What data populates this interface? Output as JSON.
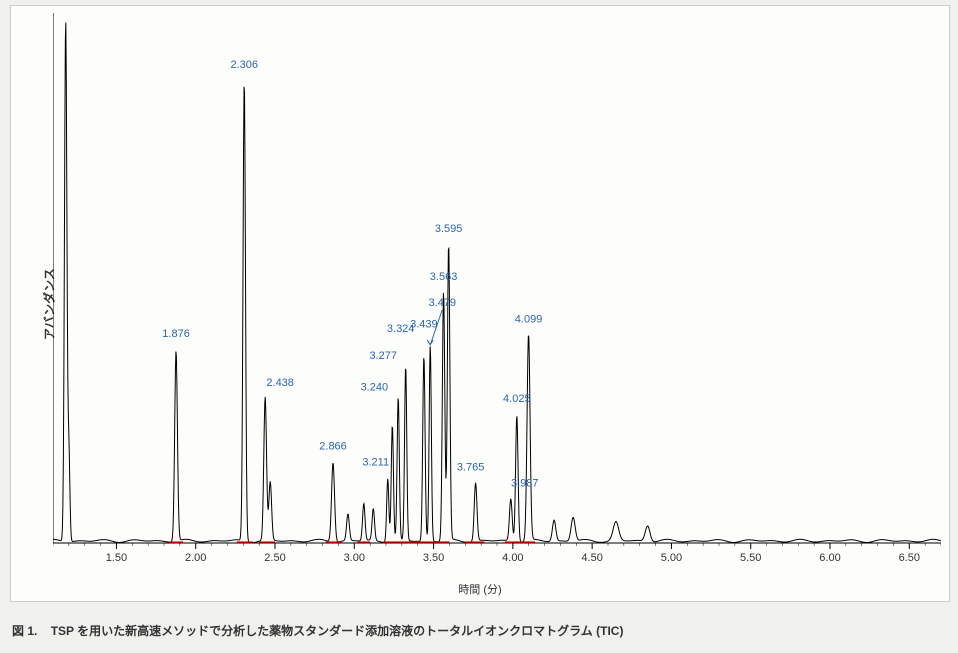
{
  "figure": {
    "caption_prefix": "図 1.",
    "caption_text": "TSP を用いた新高速メソッドで分析した薬物スタンダード添加溶液のトータルイオンクロマトグラム (TIC)",
    "y_axis_label": "アバンダンス",
    "x_axis_label": "時間 (分)"
  },
  "chart": {
    "type": "chromatogram",
    "x_min": 1.1,
    "x_max": 6.7,
    "y_min": 0.0,
    "y_max": 1.0,
    "x_ticks": [
      1.5,
      2.0,
      2.5,
      3.0,
      3.5,
      4.0,
      4.5,
      5.0,
      5.5,
      6.0,
      6.5
    ],
    "x_tick_labels": [
      "1.50",
      "2.00",
      "2.50",
      "3.00",
      "3.50",
      "4.00",
      "4.50",
      "5.00",
      "5.50",
      "6.00",
      "6.50"
    ],
    "x_minor_step": 0.1,
    "baseline_color": "#000000",
    "peak_line_color": "#000000",
    "peak_line_width": 1.0,
    "label_color": "#2a66b1",
    "label_fontsize": 11,
    "integration_segment_color": "#ff0000",
    "integration_segment_width": 1.2,
    "background_color": "#fdfdfc",
    "peaks": [
      {
        "rt": 1.18,
        "height": 0.985,
        "width": 0.018,
        "label": null
      },
      {
        "rt": 1.2,
        "height": 0.17,
        "width": 0.015,
        "label": null
      },
      {
        "rt": 1.876,
        "height": 0.36,
        "width": 0.02,
        "label": "1.876"
      },
      {
        "rt": 2.306,
        "height": 0.87,
        "width": 0.018,
        "label": "2.306"
      },
      {
        "rt": 2.438,
        "height": 0.27,
        "width": 0.02,
        "label": "2.438"
      },
      {
        "rt": 2.47,
        "height": 0.11,
        "width": 0.02,
        "label": null
      },
      {
        "rt": 2.866,
        "height": 0.15,
        "width": 0.022,
        "label": "2.866"
      },
      {
        "rt": 2.96,
        "height": 0.05,
        "width": 0.02,
        "label": null
      },
      {
        "rt": 3.06,
        "height": 0.07,
        "width": 0.018,
        "label": null
      },
      {
        "rt": 3.12,
        "height": 0.06,
        "width": 0.018,
        "label": null
      },
      {
        "rt": 3.211,
        "height": 0.12,
        "width": 0.016,
        "label": "3.211"
      },
      {
        "rt": 3.24,
        "height": 0.22,
        "width": 0.016,
        "label": "3.240"
      },
      {
        "rt": 3.277,
        "height": 0.27,
        "width": 0.016,
        "label": "3.277"
      },
      {
        "rt": 3.324,
        "height": 0.33,
        "width": 0.016,
        "label": "3.324"
      },
      {
        "rt": 3.439,
        "height": 0.35,
        "width": 0.017,
        "label": "3.439"
      },
      {
        "rt": 3.479,
        "height": 0.37,
        "width": 0.016,
        "label": "3.479"
      },
      {
        "rt": 3.563,
        "height": 0.47,
        "width": 0.018,
        "label": "3.563"
      },
      {
        "rt": 3.595,
        "height": 0.56,
        "width": 0.018,
        "label": "3.595"
      },
      {
        "rt": 3.765,
        "height": 0.11,
        "width": 0.02,
        "label": "3.765"
      },
      {
        "rt": 3.987,
        "height": 0.08,
        "width": 0.02,
        "label": "3.987"
      },
      {
        "rt": 4.025,
        "height": 0.24,
        "width": 0.018,
        "label": "4.025"
      },
      {
        "rt": 4.099,
        "height": 0.39,
        "width": 0.022,
        "label": "4.099"
      },
      {
        "rt": 4.26,
        "height": 0.04,
        "width": 0.025,
        "label": null
      },
      {
        "rt": 4.38,
        "height": 0.045,
        "width": 0.03,
        "label": null
      },
      {
        "rt": 4.65,
        "height": 0.035,
        "width": 0.04,
        "label": null
      },
      {
        "rt": 4.85,
        "height": 0.03,
        "width": 0.035,
        "label": null
      }
    ],
    "integration_segments": [
      [
        1.83,
        1.92
      ],
      [
        2.26,
        2.36
      ],
      [
        2.4,
        2.5
      ],
      [
        2.82,
        2.92
      ],
      [
        3.02,
        3.1
      ],
      [
        3.18,
        3.6
      ],
      [
        3.7,
        3.82
      ],
      [
        3.95,
        4.14
      ]
    ],
    "label_offsets": {
      "1.876": {
        "dx": 0,
        "dy": -15
      },
      "2.306": {
        "dx": 0,
        "dy": -14
      },
      "2.438": {
        "dx": 15,
        "dy": -14
      },
      "2.866": {
        "dx": 0,
        "dy": -14
      },
      "3.211": {
        "dx": -12,
        "dy": -14
      },
      "3.240": {
        "dx": -18,
        "dy": -36
      },
      "3.277": {
        "dx": -15,
        "dy": -41
      },
      "3.324": {
        "dx": -5,
        "dy": -36
      },
      "3.439": {
        "dx": 0,
        "dy": -30
      },
      "3.479": {
        "dx": 12,
        "dy": -41
      },
      "3.563": {
        "dx": 0,
        "dy": -14
      },
      "3.595": {
        "dx": 0,
        "dy": -14
      },
      "3.765": {
        "dx": -5,
        "dy": -14
      },
      "3.987": {
        "dx": 14,
        "dy": -14
      },
      "4.025": {
        "dx": 0,
        "dy": -14
      },
      "4.099": {
        "dx": 0,
        "dy": -14
      }
    }
  }
}
